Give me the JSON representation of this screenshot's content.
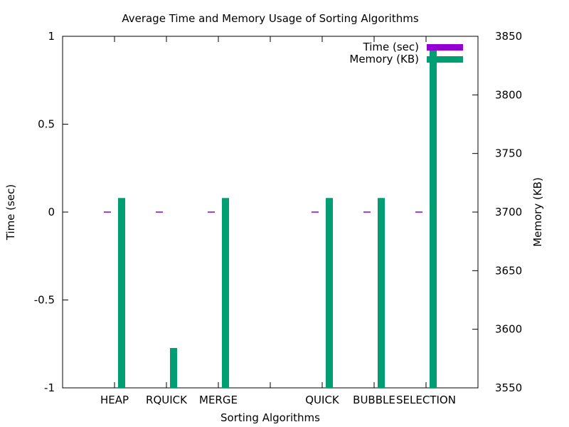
{
  "chart_data": {
    "type": "bar",
    "title": "Average Time and Memory Usage of Sorting Algorithms",
    "xlabel": "Sorting Algorithms",
    "ylabel": "Time (sec)",
    "y2label": "Memory (KB)",
    "categories": [
      "HEAP",
      "RQUICK",
      "MERGE",
      "",
      "QUICK",
      "BUBBLE",
      "SELECTION"
    ],
    "ylim": [
      -1,
      1
    ],
    "y2lim": [
      3550,
      3850
    ],
    "yticks": [
      "1",
      "0.5",
      "0",
      "-0.5",
      "-1"
    ],
    "y2ticks": [
      "3850",
      "3800",
      "3750",
      "3700",
      "3650",
      "3600",
      "3550"
    ],
    "legend_position": "top-right",
    "grid": false,
    "series": [
      {
        "name": "Time (sec)",
        "axis": "left",
        "color": "#9400d3",
        "values": [
          0,
          0,
          0,
          null,
          0,
          0,
          0
        ]
      },
      {
        "name": "Memory (KB)",
        "axis": "right",
        "color": "#009e73",
        "values": [
          3712,
          3584,
          3712,
          null,
          3712,
          3712,
          3840
        ]
      }
    ]
  }
}
